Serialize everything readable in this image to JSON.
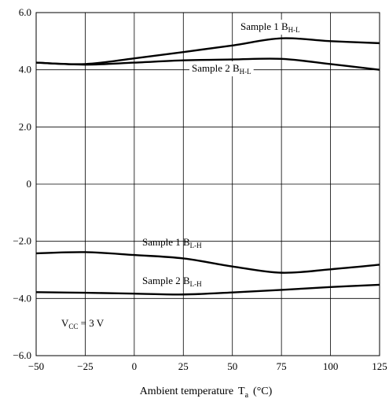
{
  "chart_data": {
    "type": "line",
    "xlabel": "Ambient temperature",
    "xlabel_symbol": "T",
    "xlabel_symbol_sub": "a",
    "xlabel_unit": "(°C)",
    "x_ticks": [
      -50,
      -25,
      0,
      25,
      50,
      75,
      100,
      125
    ],
    "x_tick_labels": [
      "−50",
      "−25",
      "0",
      "25",
      "50",
      "75",
      "100",
      "125"
    ],
    "y_ticks": [
      -6,
      -4,
      -2,
      0,
      2,
      4,
      6
    ],
    "y_tick_labels": [
      "−6.0",
      "−4.0",
      "−2.0",
      "0",
      "2.0",
      "4.0",
      "6.0"
    ],
    "xlim": [
      -50,
      125
    ],
    "ylim": [
      -6,
      6
    ],
    "grid": true,
    "series": [
      {
        "name_main": "Sample 1  B",
        "name_sub": "H-L",
        "x": [
          -50,
          -25,
          0,
          25,
          50,
          75,
          100,
          125
        ],
        "y": [
          4.25,
          4.2,
          4.4,
          4.62,
          4.85,
          5.1,
          5.0,
          4.93
        ]
      },
      {
        "name_main": "Sample 2  B",
        "name_sub": "H-L",
        "x": [
          -50,
          -25,
          0,
          25,
          50,
          75,
          100,
          125
        ],
        "y": [
          4.25,
          4.18,
          4.25,
          4.33,
          4.36,
          4.38,
          4.2,
          4.0
        ]
      },
      {
        "name_main": "Sample 1  B",
        "name_sub": "L-H",
        "x": [
          -50,
          -25,
          0,
          25,
          50,
          75,
          100,
          125
        ],
        "y": [
          -2.42,
          -2.38,
          -2.48,
          -2.6,
          -2.88,
          -3.1,
          -2.98,
          -2.82
        ]
      },
      {
        "name_main": "Sample 2  B",
        "name_sub": "L-H",
        "x": [
          -50,
          -25,
          0,
          25,
          50,
          75,
          100,
          125
        ],
        "y": [
          -3.78,
          -3.8,
          -3.83,
          -3.86,
          -3.79,
          -3.7,
          -3.6,
          -3.52
        ]
      }
    ],
    "annotation_main": "V",
    "annotation_sub": "CC",
    "annotation_rest": " = 3 V"
  }
}
